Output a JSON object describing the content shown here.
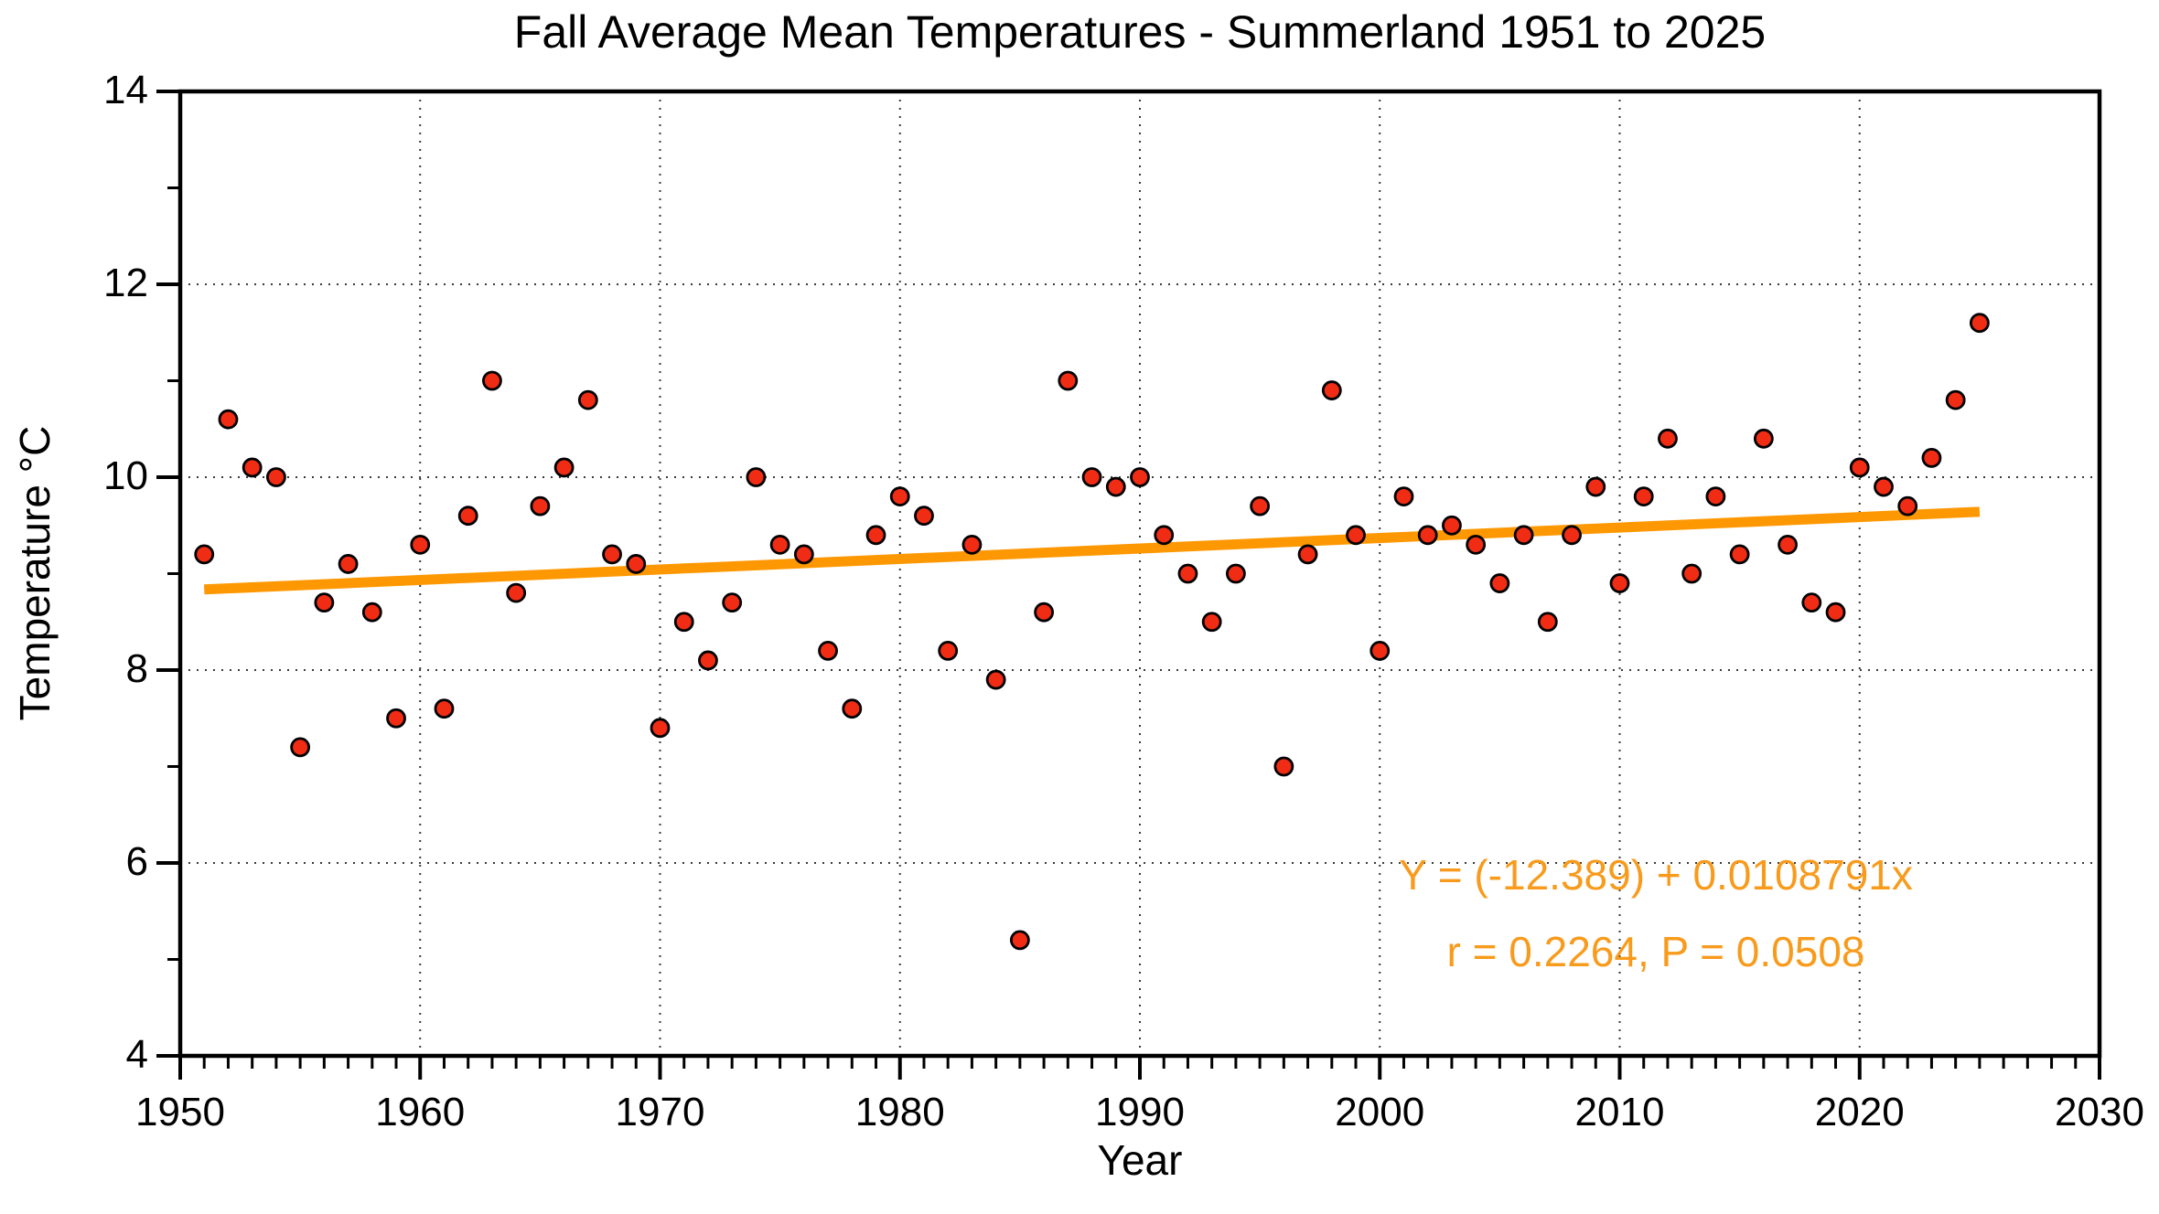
{
  "figure": {
    "title": "Fall Average Mean Temperatures - Summerland 1951 to 2025",
    "x_axis_label": "Year",
    "y_axis_label": "Temperature °C",
    "annotation_line1": "Y = (-12.389) + 0.0108791x",
    "annotation_line2": "r = 0.2264, P = 0.0508"
  },
  "chart_data": {
    "type": "scatter",
    "title": "Fall Average Mean Temperatures - Summerland 1951 to 2025",
    "xlabel": "Year",
    "ylabel": "Temperature °C",
    "xlim": [
      1950,
      2030
    ],
    "ylim": [
      4,
      14
    ],
    "x_major_ticks": [
      1950,
      1960,
      1970,
      1980,
      1990,
      2000,
      2010,
      2020,
      2030
    ],
    "y_major_ticks": [
      4,
      6,
      8,
      10,
      12,
      14
    ],
    "x_minor_step": 1,
    "y_minor_step": 1,
    "grid": "dotted gridlines at decade verticals and even-degree horizontals",
    "legend": "none",
    "series": [
      {
        "name": "Fall average mean temperature",
        "marker": "circle",
        "x": [
          1951,
          1952,
          1953,
          1954,
          1955,
          1956,
          1957,
          1958,
          1959,
          1960,
          1961,
          1962,
          1963,
          1964,
          1965,
          1966,
          1967,
          1968,
          1969,
          1970,
          1971,
          1972,
          1973,
          1974,
          1975,
          1976,
          1977,
          1978,
          1979,
          1980,
          1981,
          1982,
          1983,
          1984,
          1985,
          1986,
          1987,
          1988,
          1989,
          1990,
          1991,
          1992,
          1993,
          1994,
          1995,
          1996,
          1997,
          1998,
          1999,
          2000,
          2001,
          2002,
          2003,
          2004,
          2005,
          2006,
          2007,
          2008,
          2009,
          2010,
          2011,
          2012,
          2013,
          2014,
          2015,
          2016,
          2017,
          2018,
          2019,
          2020,
          2021,
          2022,
          2023,
          2024,
          2025
        ],
        "y": [
          9.2,
          10.6,
          10.1,
          10.0,
          7.2,
          8.7,
          9.1,
          8.6,
          7.5,
          9.3,
          7.6,
          9.6,
          11.0,
          8.8,
          9.7,
          10.1,
          10.8,
          9.2,
          9.1,
          7.4,
          8.5,
          8.1,
          8.7,
          10.0,
          9.3,
          9.2,
          8.2,
          7.6,
          9.4,
          9.8,
          9.6,
          8.2,
          9.3,
          7.9,
          5.2,
          8.6,
          11.0,
          10.0,
          9.9,
          10.0,
          9.4,
          9.0,
          8.5,
          9.0,
          9.7,
          7.0,
          9.2,
          10.9,
          9.4,
          8.2,
          9.8,
          9.4,
          9.5,
          9.3,
          8.9,
          9.4,
          8.5,
          9.4,
          9.9,
          8.9,
          9.8,
          10.4,
          9.0,
          9.8,
          9.2,
          10.4,
          9.3,
          8.7,
          8.6,
          10.1,
          9.9,
          9.7,
          10.2,
          10.8,
          11.6
        ]
      }
    ],
    "trend_line": {
      "equation": "Y = (-12.389) + 0.0108791x",
      "intercept": -12.389,
      "slope": 0.0108791,
      "x_start": 1951,
      "x_end": 2025,
      "r": 0.2264,
      "p": 0.0508
    },
    "colors": {
      "marker_fill": "#F02D14",
      "marker_edge": "#000000",
      "trend_line": "#FD9802",
      "annotation_text": "#F89B1C",
      "grid": "#3a3a3a",
      "axis": "#000000",
      "background": "#ffffff"
    }
  }
}
